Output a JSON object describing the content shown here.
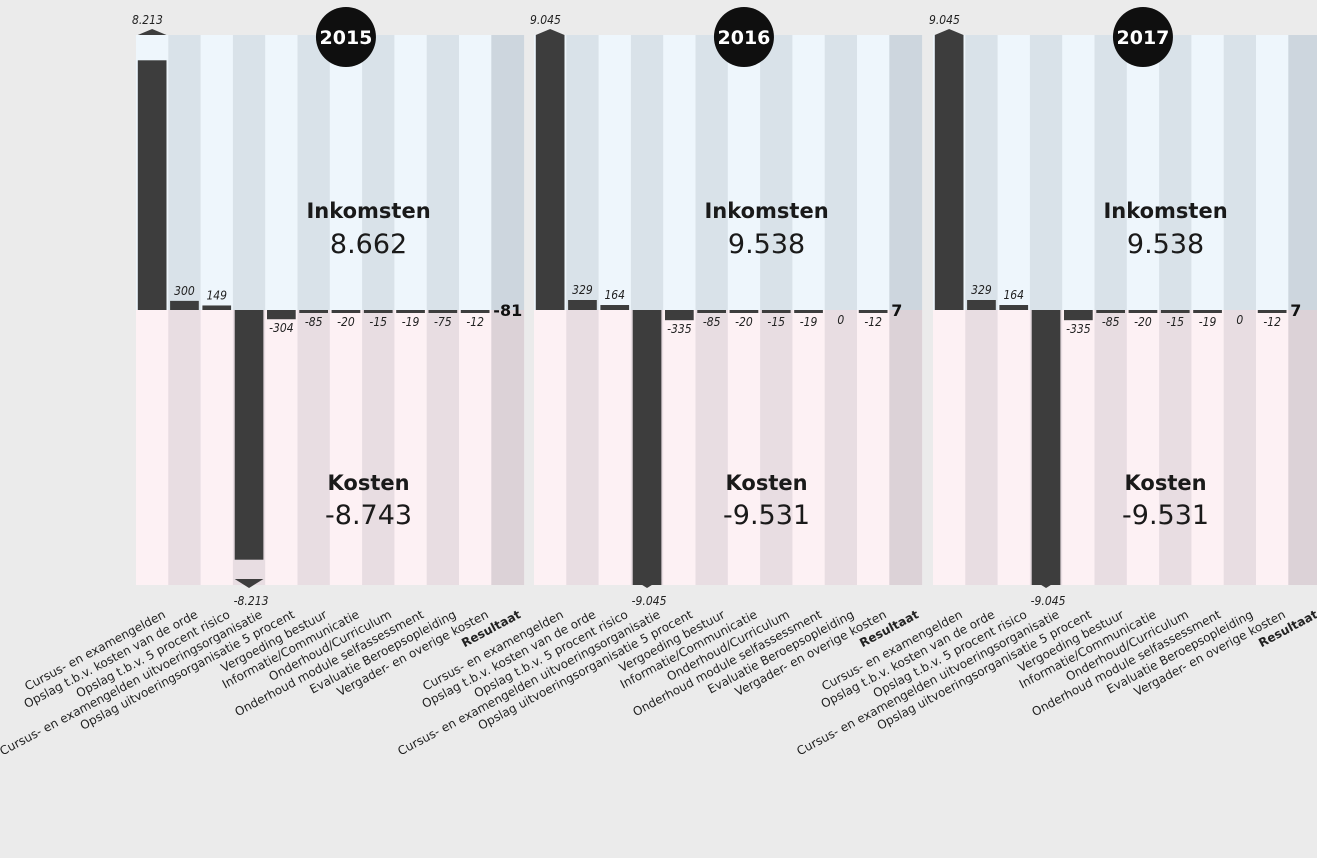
{
  "chart_data": [
    {
      "type": "bar",
      "year": "2015",
      "categories": [
        "Cursus- en examengelden",
        "Opslag t.b.v. kosten van de orde",
        "Opslag t.b.v. 5 procent risico",
        "Cursus- en examengelden uitvoeringsorganisatie",
        "Opslag uitvoeringsorganisatie 5 procent",
        "Vergoeding bestuur",
        "Informatie/Communicatie",
        "Onderhoud/Curriculum",
        "Onderhoud module selfassessment",
        "Evaluatie Beroepsopleiding",
        "Vergader- en overige kosten",
        "Resultaat"
      ],
      "values": [
        8213,
        300,
        149,
        -8213,
        -304,
        -85,
        -20,
        -15,
        -19,
        -75,
        -12,
        -81
      ],
      "labels": [
        "8.213",
        "300",
        "149",
        "-8.213",
        "-304",
        "-85",
        "-20",
        "-15",
        "-19",
        "-75",
        "-12",
        "-81"
      ],
      "income_title": "Inkomsten",
      "income_total": "8.662",
      "cost_title": "Kosten",
      "cost_total": "-8.743",
      "ylim": [
        -9045,
        9045
      ]
    },
    {
      "type": "bar",
      "year": "2016",
      "categories": [
        "Cursus- en examengelden",
        "Opslag t.b.v. kosten van de orde",
        "Opslag t.b.v. 5 procent risico",
        "Cursus- en examengelden uitvoeringsorganisatie",
        "Opslag uitvoeringsorganisatie 5 procent",
        "Vergoeding bestuur",
        "Informatie/Communicatie",
        "Onderhoud/Curriculum",
        "Onderhoud module selfassessment",
        "Evaluatie Beroepsopleiding",
        "Vergader- en overige kosten",
        "Resultaat"
      ],
      "values": [
        9045,
        329,
        164,
        -9045,
        -335,
        -85,
        -20,
        -15,
        -19,
        0,
        -12,
        7
      ],
      "labels": [
        "9.045",
        "329",
        "164",
        "-9.045",
        "-335",
        "-85",
        "-20",
        "-15",
        "-19",
        "0",
        "-12",
        "7"
      ],
      "income_title": "Inkomsten",
      "income_total": "9.538",
      "cost_title": "Kosten",
      "cost_total": "-9.531",
      "ylim": [
        -9045,
        9045
      ]
    },
    {
      "type": "bar",
      "year": "2017",
      "categories": [
        "Cursus- en examengelden",
        "Opslag t.b.v. kosten van de orde",
        "Opslag t.b.v. 5 procent risico",
        "Cursus- en examengelden uitvoeringsorganisatie",
        "Opslag uitvoeringsorganisatie 5 procent",
        "Vergoeding bestuur",
        "Informatie/Communicatie",
        "Onderhoud/Curriculum",
        "Onderhoud module selfassessment",
        "Evaluatie Beroepsopleiding",
        "Vergader- en overige kosten",
        "Resultaat"
      ],
      "values": [
        9045,
        329,
        164,
        -9045,
        -335,
        -85,
        -20,
        -15,
        -19,
        0,
        -12,
        7
      ],
      "labels": [
        "9.045",
        "329",
        "164",
        "-9.045",
        "-335",
        "-85",
        "-20",
        "-15",
        "-19",
        "0",
        "-12",
        "7"
      ],
      "income_title": "Inkomsten",
      "income_total": "9.538",
      "cost_title": "Kosten",
      "cost_total": "-9.531",
      "ylim": [
        -9045,
        9045
      ]
    }
  ],
  "colors": {
    "bar": "#3d3d3d",
    "background": "#ebebeb",
    "income_light": "#eef6fc",
    "income_dark": "#d9e2e9",
    "income_result": "#cdd6de",
    "cost_light": "#fdf1f4",
    "cost_dark": "#e8dde2",
    "cost_result": "#dcd2d7",
    "badge": "#0f0f0f"
  }
}
